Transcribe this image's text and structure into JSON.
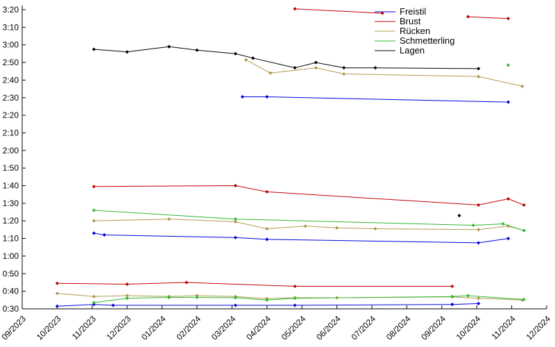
{
  "chart_data": {
    "type": "line",
    "title": "",
    "x_tick_labels": [
      "09/2023",
      "10/2023",
      "11/2023",
      "12/2023",
      "01/2024",
      "02/2024",
      "03/2024",
      "04/2024",
      "05/2024",
      "06/2024",
      "07/2024",
      "08/2024",
      "09/2024",
      "10/2024",
      "11/2024",
      "12/2024"
    ],
    "y_tick_labels": [
      "0:30",
      "0:40",
      "0:50",
      "1:00",
      "1:10",
      "1:20",
      "1:30",
      "1:40",
      "1:50",
      "2:00",
      "2:10",
      "2:20",
      "2:30",
      "2:40",
      "2:50",
      "3:00",
      "3:10",
      "3:20"
    ],
    "x_range": [
      0,
      15
    ],
    "y_range_seconds": [
      30,
      200
    ],
    "grid": false,
    "legend_position": "top-right",
    "marker": "diamond",
    "series": [
      {
        "name": "Freistil",
        "key": "freistil",
        "color": "#0000dd",
        "runs": [
          [
            [
              6.3,
              150.5
            ],
            [
              7,
              150.5
            ],
            [
              13.9,
              147.5
            ]
          ],
          [
            [
              2.05,
              73
            ],
            [
              2.35,
              72
            ],
            [
              6.1,
              70.5
            ],
            [
              7,
              69.5
            ],
            [
              13.05,
              67.5
            ],
            [
              13.9,
              70
            ]
          ],
          [
            [
              1,
              31.5
            ],
            [
              2.05,
              32.5
            ],
            [
              2.6,
              32
            ],
            [
              6.1,
              32
            ],
            [
              7.8,
              32
            ],
            [
              12.3,
              32.5
            ],
            [
              13.05,
              33
            ]
          ]
        ]
      },
      {
        "name": "Brust",
        "key": "brust",
        "color": "#c00000",
        "runs": [
          [
            [
              7.8,
              200.5
            ],
            [
              10.3,
              198
            ]
          ],
          [
            [
              12.75,
              196
            ],
            [
              13.9,
              195
            ]
          ],
          [
            [
              2.05,
              99.5
            ],
            [
              6.1,
              100
            ],
            [
              7,
              96.5
            ],
            [
              13.05,
              89
            ],
            [
              13.9,
              92.5
            ],
            [
              14.35,
              89
            ]
          ],
          [
            [
              1,
              44.5
            ],
            [
              3,
              44
            ],
            [
              4.7,
              45
            ],
            [
              7.8,
              42.8
            ],
            [
              12.3,
              42.8
            ]
          ]
        ]
      },
      {
        "name": "Rücken",
        "key": "ruecken",
        "color": "#b0984f",
        "runs": [
          [
            [
              6.4,
              171.5
            ],
            [
              7.1,
              164
            ],
            [
              8.4,
              167
            ],
            [
              9.2,
              163.5
            ],
            [
              13.05,
              162
            ],
            [
              14.3,
              156.5
            ]
          ],
          [
            [
              2.05,
              80
            ],
            [
              4.2,
              81
            ],
            [
              6.1,
              79.5
            ],
            [
              7,
              75.5
            ],
            [
              8.1,
              77
            ],
            [
              9,
              76
            ],
            [
              10.1,
              75.5
            ],
            [
              13.05,
              75
            ],
            [
              13.9,
              77
            ],
            [
              14.35,
              74.5
            ]
          ],
          [
            [
              1,
              38.8
            ],
            [
              2.05,
              37
            ],
            [
              3,
              37.5
            ],
            [
              4.2,
              37
            ],
            [
              5,
              37.5
            ],
            [
              6.1,
              37
            ],
            [
              7,
              35.8
            ],
            [
              7.8,
              36.3
            ],
            [
              9,
              36.3
            ],
            [
              12.3,
              36.8
            ],
            [
              13.05,
              36
            ],
            [
              14.3,
              35
            ]
          ]
        ]
      },
      {
        "name": "Schmetterling",
        "key": "schmetterling",
        "color": "#2eb82e",
        "runs": [
          [
            [
              2.05,
              86
            ],
            [
              6.1,
              81
            ],
            [
              12.9,
              77.5
            ],
            [
              13.75,
              78.3
            ],
            [
              14.35,
              74.5
            ]
          ],
          [
            [
              13.9,
              168.5
            ]
          ],
          [
            [
              2.05,
              33.5
            ],
            [
              3,
              36
            ],
            [
              4.2,
              36.5
            ],
            [
              5,
              36.5
            ],
            [
              6.1,
              36.3
            ],
            [
              7,
              35
            ],
            [
              7.8,
              36
            ],
            [
              12.3,
              37
            ],
            [
              12.75,
              37.5
            ],
            [
              14.35,
              35.3
            ]
          ]
        ]
      },
      {
        "name": "Lagen",
        "key": "lagen",
        "color": "#000000",
        "runs": [
          [
            [
              2.05,
              177.5
            ],
            [
              3,
              176
            ],
            [
              4.2,
              179
            ],
            [
              5,
              177
            ],
            [
              6.1,
              175
            ],
            [
              6.6,
              172.5
            ],
            [
              7.8,
              167
            ],
            [
              8.4,
              170
            ],
            [
              9.2,
              167
            ],
            [
              10.1,
              167
            ],
            [
              13.05,
              166.5
            ]
          ],
          [
            [
              12.5,
              83
            ]
          ]
        ]
      }
    ]
  },
  "legend": {
    "items": [
      "Freistil",
      "Brust",
      "Rücken",
      "Schmetterling",
      "Lagen"
    ]
  }
}
